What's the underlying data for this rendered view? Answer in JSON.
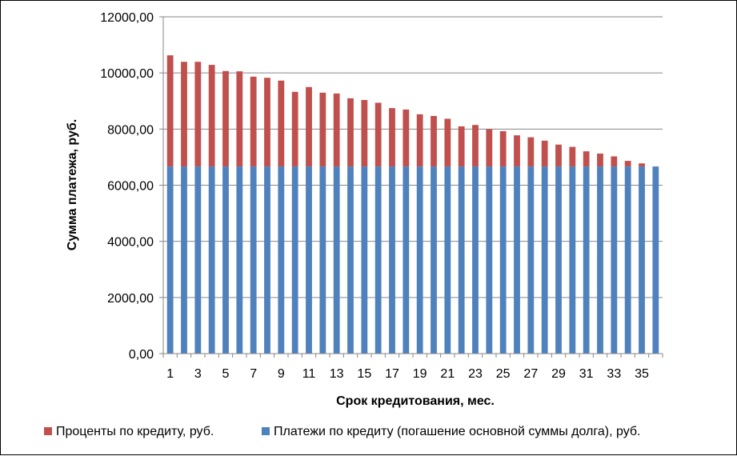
{
  "chart_data": {
    "type": "bar",
    "stacked": true,
    "categories": [
      "1",
      "2",
      "3",
      "4",
      "5",
      "6",
      "7",
      "8",
      "9",
      "10",
      "11",
      "12",
      "13",
      "14",
      "15",
      "16",
      "17",
      "18",
      "19",
      "20",
      "21",
      "22",
      "23",
      "24",
      "25",
      "26",
      "27",
      "28",
      "29",
      "30",
      "31",
      "32",
      "33",
      "34",
      "35",
      "36"
    ],
    "x_tick_labels": [
      "1",
      "3",
      "5",
      "7",
      "9",
      "11",
      "13",
      "15",
      "17",
      "19",
      "21",
      "23",
      "25",
      "27",
      "29",
      "31",
      "33",
      "35"
    ],
    "xlabel": "Срок кредитования, мес.",
    "ylabel": "Сумма платежа, руб.",
    "ylim": [
      0,
      12000
    ],
    "y_tick_labels": [
      "0,00",
      "2000,00",
      "4000,00",
      "6000,00",
      "8000,00",
      "10000,00",
      "12000,00"
    ],
    "grid": true,
    "legend_position": "bottom",
    "series": [
      {
        "name": "Платежи по кредиту (погашение основной суммы долга), руб.",
        "color": "#4F81BD",
        "values": [
          6667,
          6667,
          6667,
          6667,
          6667,
          6667,
          6667,
          6667,
          6667,
          6667,
          6667,
          6667,
          6667,
          6667,
          6667,
          6667,
          6667,
          6667,
          6667,
          6667,
          6667,
          6667,
          6667,
          6667,
          6667,
          6667,
          6667,
          6667,
          6667,
          6667,
          6667,
          6667,
          6667,
          6667,
          6667,
          6667
        ]
      },
      {
        "name": "Проценты по кредиту, руб.",
        "color": "#C0504D",
        "values": [
          3960,
          3730,
          3730,
          3620,
          3400,
          3390,
          3200,
          3160,
          3060,
          2660,
          2830,
          2630,
          2600,
          2430,
          2370,
          2270,
          2080,
          2030,
          1860,
          1800,
          1700,
          1430,
          1480,
          1330,
          1260,
          1110,
          1040,
          920,
          780,
          700,
          540,
          460,
          360,
          200,
          110,
          0
        ]
      }
    ]
  }
}
